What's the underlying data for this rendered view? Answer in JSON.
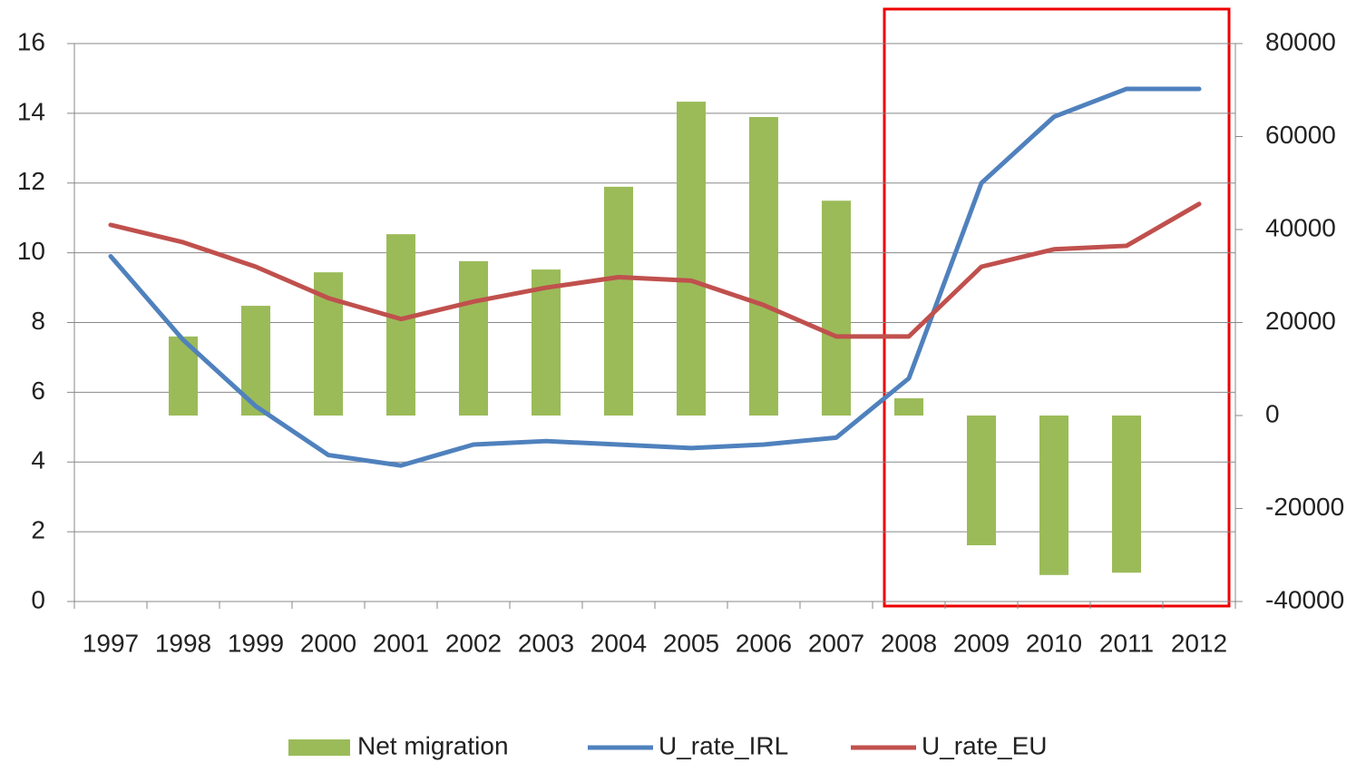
{
  "chart_data": {
    "type": "bar-line",
    "categories": [
      "1997",
      "1998",
      "1999",
      "2000",
      "2001",
      "2002",
      "2003",
      "2004",
      "2005",
      "2006",
      "2007",
      "2008",
      "2009",
      "2010",
      "2011",
      "2012"
    ],
    "series": [
      {
        "name": "Net migration",
        "type": "bar",
        "axis": "y2",
        "color": "#9bbb59",
        "values": [
          null,
          17000,
          23600,
          30800,
          39000,
          33200,
          31400,
          49200,
          67500,
          64200,
          46200,
          3700,
          -27900,
          -34300,
          -33800,
          null
        ]
      },
      {
        "name": "U_rate_IRL",
        "type": "line",
        "axis": "y",
        "color": "#4f81bd",
        "values": [
          9.9,
          7.5,
          5.6,
          4.2,
          3.9,
          4.5,
          4.6,
          4.5,
          4.4,
          4.5,
          4.7,
          6.4,
          12.0,
          13.9,
          14.7,
          14.7
        ]
      },
      {
        "name": "U_rate_EU",
        "type": "line",
        "axis": "y",
        "color": "#c0504d",
        "values": [
          10.8,
          10.3,
          9.6,
          8.7,
          8.1,
          8.6,
          9.0,
          9.3,
          9.2,
          8.5,
          7.6,
          7.6,
          9.6,
          10.1,
          10.2,
          11.4
        ]
      }
    ],
    "ylim": [
      0,
      16
    ],
    "yticks": [
      0,
      2,
      4,
      6,
      8,
      10,
      12,
      14,
      16
    ],
    "y2lim": [
      -40000,
      80000
    ],
    "y2ticks": [
      -40000,
      -20000,
      0,
      20000,
      40000,
      60000,
      80000
    ],
    "grid": true,
    "legend": "bottom"
  }
}
